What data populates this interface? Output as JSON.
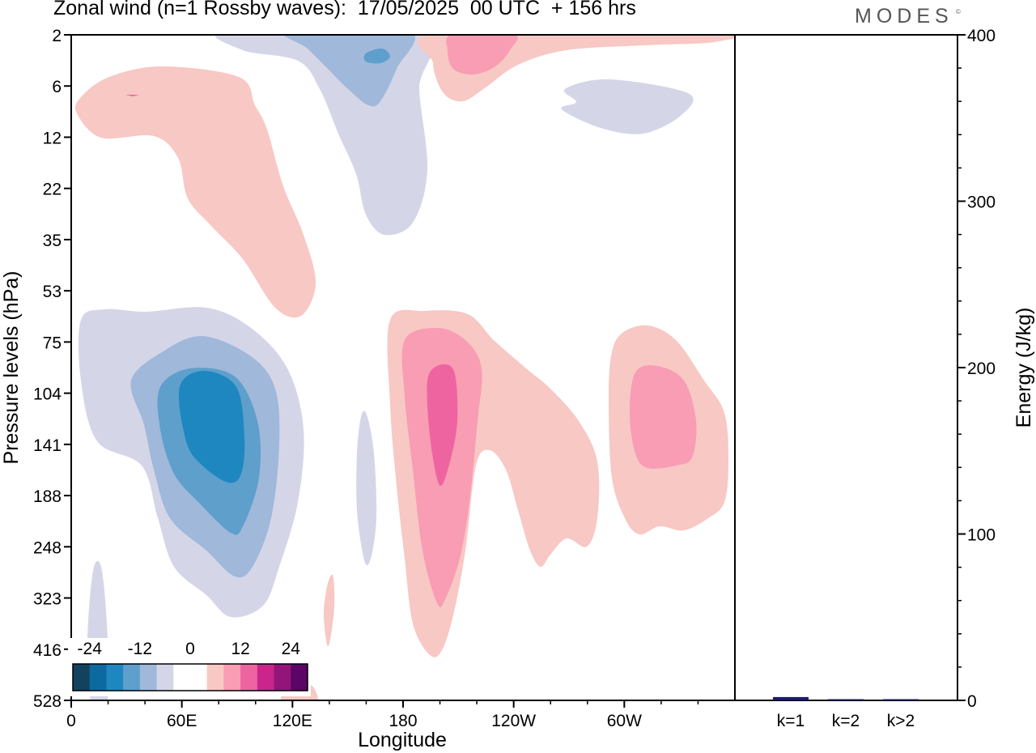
{
  "title": "Zonal wind (n=1 Rossby waves):  17/05/2025  00 UTC  + 156 hrs",
  "brand": "MODES",
  "brand_mark": "©",
  "colors": {
    "neg": [
      "#12425e",
      "#0d6aa0",
      "#1f87bf",
      "#5e9fcc",
      "#a0b8da",
      "#d4d6e8"
    ],
    "pos": [
      "#f8c8c4",
      "#f89db3",
      "#ee64a0",
      "#c9258a",
      "#941579",
      "#5b0566"
    ],
    "bar": "#1a1a6e"
  },
  "chart_data": [
    {
      "type": "heatmap",
      "title": "Zonal wind (n=1 Rossby waves):  17/05/2025  00 UTC  + 156 hrs",
      "xlabel": "Longitude",
      "ylabel": "Pressure levels (hPa)",
      "x_ticks": [
        "0",
        "60E",
        "120E",
        "180",
        "120W",
        "60W"
      ],
      "x_tick_values": [
        0,
        60,
        120,
        180,
        240,
        300
      ],
      "xlim": [
        0,
        360
      ],
      "y_ticks": [
        "2",
        "6",
        "12",
        "22",
        "35",
        "53",
        "75",
        "104",
        "141",
        "188",
        "248",
        "323",
        "416",
        "528"
      ],
      "y_scale": "model levels (ticks equally spaced)",
      "colorbar": {
        "labels": [
          "-24",
          "-12",
          "0",
          "12",
          "24"
        ],
        "levels": [
          -24,
          -12,
          0,
          12,
          24
        ],
        "n_bins": 14
      },
      "features": [
        {
          "sign": "negative",
          "peak": -22,
          "lon": 75,
          "hPa": 141
        },
        {
          "sign": "negative",
          "peak": -10,
          "lon": 165,
          "hPa": 2
        },
        {
          "sign": "negative",
          "peak": -4,
          "lon": 162,
          "hPa": 22
        },
        {
          "sign": "negative",
          "peak": -4,
          "lon": 275,
          "hPa": 6
        },
        {
          "sign": "negative",
          "peak": -4,
          "lon": 160,
          "hPa": 188
        },
        {
          "sign": "negative",
          "peak": -4,
          "lon": 15,
          "hPa": 416
        },
        {
          "sign": "positive",
          "peak": 4,
          "lon": 70,
          "hPa": 22
        },
        {
          "sign": "positive",
          "peak": 10,
          "lon": 215,
          "hPa": 2
        },
        {
          "sign": "positive",
          "peak": 16,
          "lon": 198,
          "hPa": 141
        },
        {
          "sign": "positive",
          "peak": 4,
          "lon": 245,
          "hPa": 188
        },
        {
          "sign": "positive",
          "peak": 12,
          "lon": 312,
          "hPa": 141
        },
        {
          "sign": "positive",
          "peak": 4,
          "lon": 140,
          "hPa": 323
        }
      ]
    },
    {
      "type": "bar",
      "categories": [
        "k=1",
        "k=2",
        "k>2"
      ],
      "values": [
        2,
        0.4,
        0.3
      ],
      "ylabel": "Energy (J/kg)",
      "ylim": [
        0,
        400
      ],
      "y_ticks": [
        "0",
        "100",
        "200",
        "300",
        "400"
      ],
      "y_tick_values": [
        0,
        100,
        200,
        300,
        400
      ]
    }
  ]
}
